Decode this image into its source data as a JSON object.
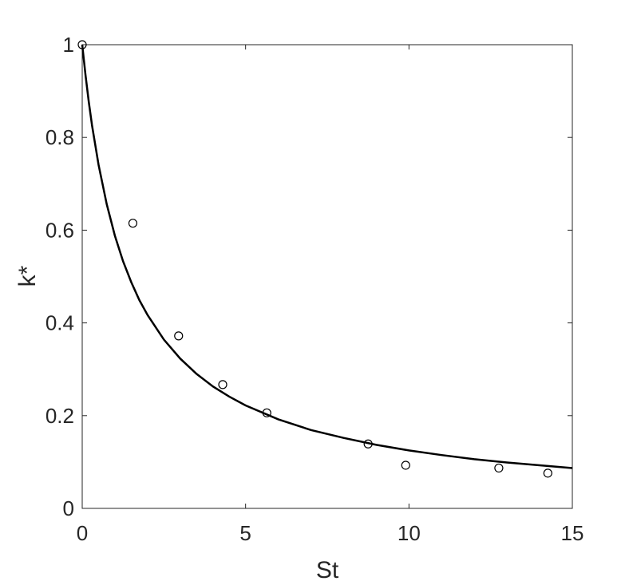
{
  "chart_data": {
    "type": "scatter",
    "title": "",
    "xlabel": "St",
    "ylabel": "k*",
    "xlim": [
      0,
      15
    ],
    "ylim": [
      0,
      1
    ],
    "xticks": [
      "0",
      "5",
      "10",
      "15"
    ],
    "yticks": [
      "0",
      "0.2",
      "0.4",
      "0.6",
      "0.8",
      "1"
    ],
    "grid": false,
    "legend": "none",
    "series": [
      {
        "type": "scatter",
        "marker": "open-circle",
        "x": [
          0,
          1.55,
          2.95,
          4.3,
          5.65,
          8.75,
          9.9,
          12.75,
          14.25
        ],
        "y": [
          1.0,
          0.615,
          0.372,
          0.267,
          0.206,
          0.139,
          0.093,
          0.087,
          0.076
        ]
      },
      {
        "type": "line",
        "x": [
          0,
          0.1,
          0.2,
          0.3,
          0.5,
          0.75,
          1,
          1.25,
          1.5,
          1.75,
          2,
          2.5,
          3,
          3.5,
          4,
          4.5,
          5,
          6,
          7,
          8,
          9,
          10,
          11,
          12,
          13,
          14,
          15
        ],
        "y": [
          1.0,
          0.935,
          0.877,
          0.826,
          0.741,
          0.656,
          0.588,
          0.533,
          0.488,
          0.449,
          0.417,
          0.364,
          0.323,
          0.29,
          0.263,
          0.241,
          0.222,
          0.192,
          0.169,
          0.152,
          0.137,
          0.125,
          0.115,
          0.106,
          0.099,
          0.093,
          0.087
        ]
      }
    ],
    "colors": {
      "axis": "#262626",
      "line": "#000000",
      "marker": "#000000"
    }
  }
}
